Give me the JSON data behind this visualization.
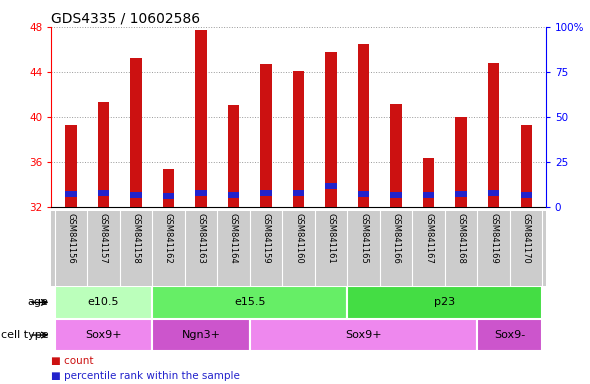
{
  "title": "GDS4335 / 10602586",
  "samples": [
    "GSM841156",
    "GSM841157",
    "GSM841158",
    "GSM841162",
    "GSM841163",
    "GSM841164",
    "GSM841159",
    "GSM841160",
    "GSM841161",
    "GSM841165",
    "GSM841166",
    "GSM841167",
    "GSM841168",
    "GSM841169",
    "GSM841170"
  ],
  "count_values": [
    39.3,
    41.3,
    45.2,
    35.4,
    47.7,
    41.1,
    44.7,
    44.1,
    45.8,
    46.5,
    41.2,
    36.4,
    40.0,
    44.8,
    39.3
  ],
  "percentile_values": [
    33.2,
    33.3,
    33.1,
    33.0,
    33.3,
    33.1,
    33.3,
    33.3,
    33.9,
    33.2,
    33.1,
    33.1,
    33.2,
    33.3,
    33.1
  ],
  "bar_bottom": 32.0,
  "ylim_left": [
    32,
    48
  ],
  "ylim_right": [
    0,
    100
  ],
  "yticks_left": [
    32,
    36,
    40,
    44,
    48
  ],
  "yticks_right": [
    0,
    25,
    50,
    75,
    100
  ],
  "ytick_labels_right": [
    "0",
    "25",
    "50",
    "75",
    "100%"
  ],
  "bar_color": "#cc1111",
  "percentile_color": "#2222cc",
  "bar_width": 0.35,
  "age_groups": [
    {
      "label": "e10.5",
      "start": 0,
      "end": 2,
      "color": "#bbffbb"
    },
    {
      "label": "e15.5",
      "start": 3,
      "end": 8,
      "color": "#66ee66"
    },
    {
      "label": "p23",
      "start": 9,
      "end": 14,
      "color": "#44dd44"
    }
  ],
  "cell_type_groups": [
    {
      "label": "Sox9+",
      "start": 0,
      "end": 2,
      "color": "#ee88ee"
    },
    {
      "label": "Ngn3+",
      "start": 3,
      "end": 5,
      "color": "#cc55cc"
    },
    {
      "label": "Sox9+",
      "start": 6,
      "end": 12,
      "color": "#ee88ee"
    },
    {
      "label": "Sox9-",
      "start": 13,
      "end": 14,
      "color": "#cc55cc"
    }
  ],
  "xlabel_area_color": "#cccccc",
  "grid_color": "#888888",
  "title_fontsize": 10,
  "tick_fontsize": 7.5,
  "sample_fontsize": 6,
  "group_fontsize": 8,
  "legend_fontsize": 7.5
}
